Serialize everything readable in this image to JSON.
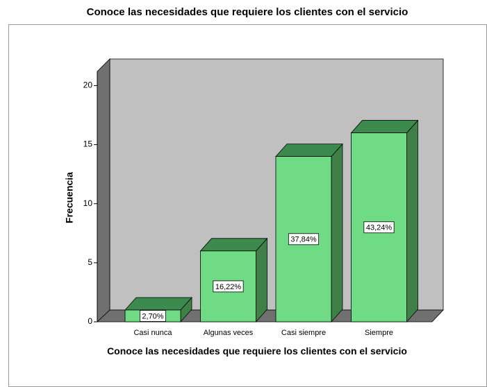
{
  "chart_data": {
    "type": "bar3d",
    "title": "Conoce las necesidades que requiere los clientes con el servicio",
    "x_label": "Conoce las necesidades que requiere los clientes con el servicio",
    "y_label": "Frecuencia",
    "categories": [
      "Casi nunca",
      "Algunas veces",
      "Casi siempre",
      "Siempre"
    ],
    "values": [
      1,
      6,
      14,
      16
    ],
    "value_labels": [
      "2,70%",
      "16,22%",
      "37,84%",
      "43,24%"
    ],
    "color": "#6fdc85",
    "ylim": [
      0,
      21.2
    ],
    "yticks": [
      0,
      5,
      10,
      15,
      20
    ]
  }
}
